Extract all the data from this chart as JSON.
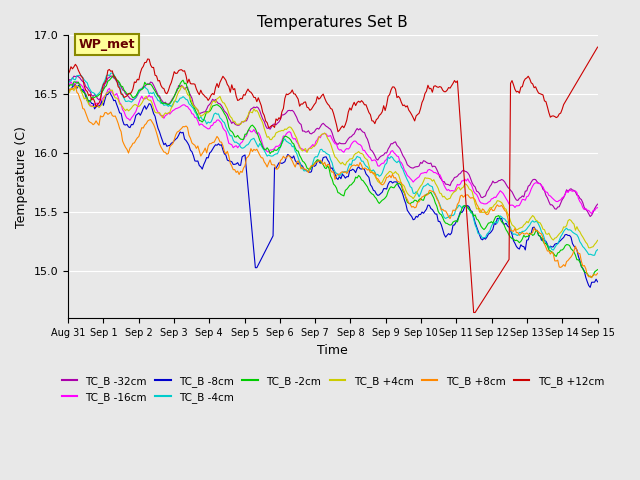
{
  "title": "Temperatures Set B",
  "xlabel": "Time",
  "ylabel": "Temperature (C)",
  "ylim": [
    14.6,
    17.0
  ],
  "background_color": "#e8e8e8",
  "plot_bg_color": "#e8e8e8",
  "series": [
    {
      "label": "TC_B -32cm",
      "color": "#aa00aa"
    },
    {
      "label": "TC_B -16cm",
      "color": "#ff00ff"
    },
    {
      "label": "TC_B -8cm",
      "color": "#0000cc"
    },
    {
      "label": "TC_B -4cm",
      "color": "#00cccc"
    },
    {
      "label": "TC_B -2cm",
      "color": "#00cc00"
    },
    {
      "label": "TC_B +4cm",
      "color": "#cccc00"
    },
    {
      "label": "TC_B +8cm",
      "color": "#ff8800"
    },
    {
      "label": "TC_B +12cm",
      "color": "#cc0000"
    }
  ],
  "x_tick_labels": [
    "Aug 31",
    "Sep 1",
    "Sep 2",
    "Sep 3",
    "Sep 4",
    "Sep 5",
    "Sep 6",
    "Sep 7",
    "Sep 8",
    "Sep 9",
    "Sep 10",
    "Sep 11",
    "Sep 12",
    "Sep 13",
    "Sep 14",
    "Sep 15"
  ],
  "wp_met_label": "WP_met",
  "wp_met_bg": "#ffff99",
  "wp_met_border": "#888800"
}
